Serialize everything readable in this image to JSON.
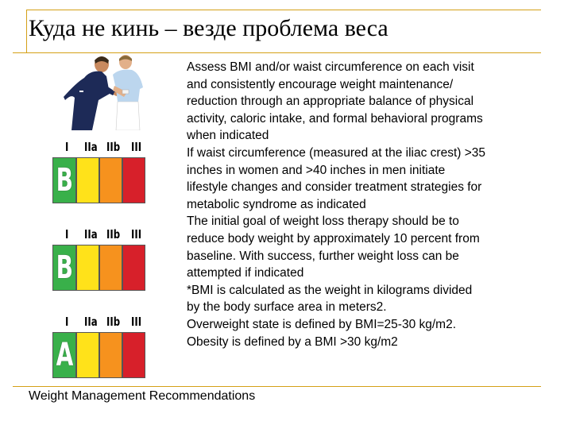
{
  "slide": {
    "title": "Куда не кинь – везде проблема веса",
    "body_lines": [
      "Assess BMI and/or waist circumference on each visit",
      "and consistently encourage weight maintenance/",
      "reduction through an appropriate balance of physical",
      "activity, caloric intake, and formal behavioral programs",
      "when indicated",
      "If waist circumference (measured at the iliac crest) >35",
      "inches in women and >40 inches in men initiate",
      "lifestyle changes and consider treatment strategies for",
      "metabolic syndrome as indicated",
      "The initial goal of weight loss therapy should be to",
      "reduce body weight by approximately 10 percent from",
      "baseline. With success, further weight loss can be",
      "attempted if indicated",
      "*BMI is calculated as the weight in kilograms divided",
      "by the body surface area in meters2.",
      "Overweight state is defined by BMI=25-30 kg/m2.",
      "Obesity is defined by a BMI >30 kg/m2"
    ],
    "footer": "Weight Management Recommendations"
  },
  "recommendations": [
    {
      "classes": [
        "I",
        "IIa",
        "IIb",
        "III"
      ],
      "grade": "B"
    },
    {
      "classes": [
        "I",
        "IIa",
        "IIb",
        "III"
      ],
      "grade": "B"
    },
    {
      "classes": [
        "I",
        "IIa",
        "IIb",
        "III"
      ],
      "grade": "A"
    }
  ],
  "colors": {
    "rule": "#d4a017",
    "class_I": "#39b04a",
    "class_IIa": "#ffe21a",
    "class_IIb": "#f6921e",
    "class_III": "#d7202a"
  }
}
